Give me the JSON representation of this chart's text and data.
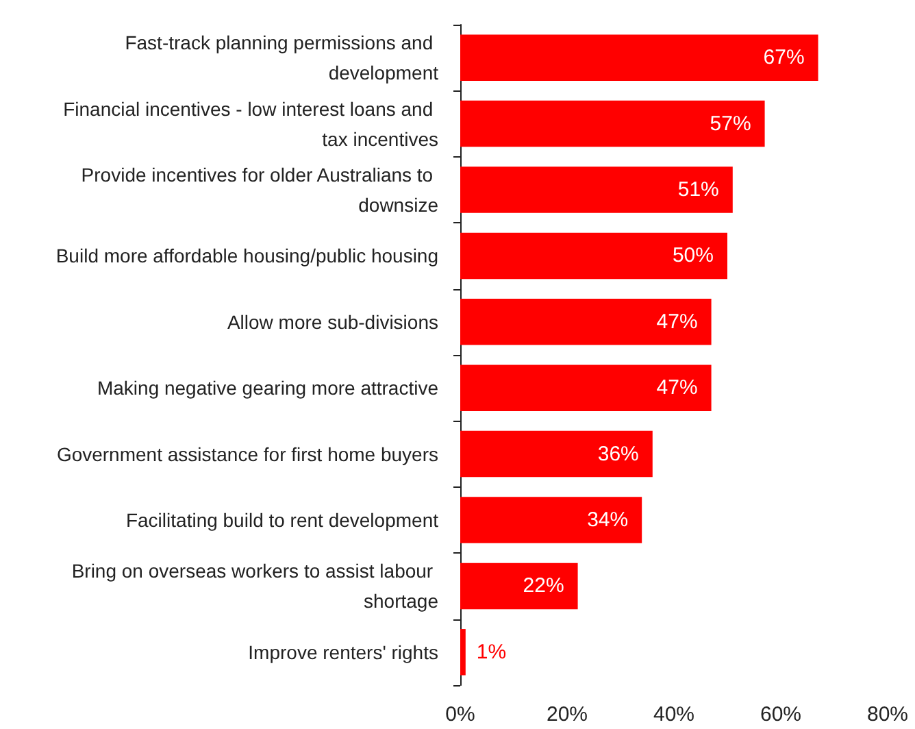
{
  "chart_data": {
    "type": "bar",
    "orientation": "horizontal",
    "categories": [
      "Fast-track planning permissions and development",
      "Financial incentives - low interest loans and tax incentives",
      "Provide incentives for older Australians to downsize",
      "Build more affordable housing/public housing",
      "Allow more sub-divisions",
      "Making negative gearing more attractive",
      "Government assistance for first home buyers",
      "Facilitating build to rent development",
      "Bring on overseas workers to assist labour shortage",
      "Improve renters' rights"
    ],
    "values": [
      67,
      57,
      51,
      50,
      47,
      47,
      36,
      34,
      22,
      1
    ],
    "value_labels": [
      "67%",
      "57%",
      "51%",
      "50%",
      "47%",
      "47%",
      "36%",
      "34%",
      "22%",
      "1%"
    ],
    "color": "#ff0000",
    "xlim": [
      0,
      80
    ],
    "xticks": [
      {
        "value": 0,
        "label": "0%"
      },
      {
        "value": 20,
        "label": "20%"
      },
      {
        "value": 40,
        "label": "40%"
      },
      {
        "value": 60,
        "label": "60%"
      },
      {
        "value": 80,
        "label": "80%"
      }
    ],
    "grid": false
  }
}
